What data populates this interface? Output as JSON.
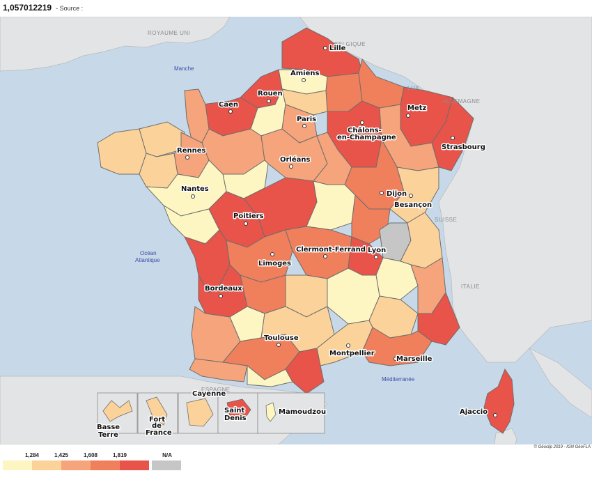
{
  "header": {
    "value_title": "1,057012219",
    "source_label": "- Source :"
  },
  "colors": {
    "sea": "#c7d9e8",
    "land_neighbor": "#e3e4e6",
    "na": "#c6c6c6",
    "class_1": "#fdf6c2",
    "class_2": "#fbd29a",
    "class_3": "#f5a47c",
    "class_4": "#f07f5c",
    "class_5": "#e8534a"
  },
  "legend": {
    "breaks": [
      "1,284",
      "1,425",
      "1,608",
      "1,819"
    ],
    "na_label": "N/A",
    "classes": [
      "class_1",
      "class_2",
      "class_3",
      "class_4",
      "class_5",
      "na"
    ]
  },
  "copyright": "© Géoclip 2019 - IGN GéoFLA",
  "countries": {
    "uk": "ROYAUME UNI",
    "belgium": "BELGIQUE",
    "lux": "LUX",
    "germany": "ALLEMAGNE",
    "switzerland": "SUISSE",
    "italy": "ITALIE",
    "spain": "ESPAGNE"
  },
  "seas": {
    "manche": "Manche",
    "atlantic_1": "Océan",
    "atlantic_2": "Atlantique",
    "mediterranean": "Méditerranée"
  },
  "cities": {
    "lille": "Lille",
    "amiens": "Amiens",
    "rouen": "Rouen",
    "caen": "Caen",
    "paris": "Paris",
    "metz": "Metz",
    "chalons_1": "Châlons-",
    "chalons_2": "en-Champagne",
    "strasbourg": "Strasbourg",
    "rennes": "Rennes",
    "orleans": "Orléans",
    "dijon": "Dijon",
    "besancon": "Besançon",
    "nantes": "Nantes",
    "poitiers": "Poitiers",
    "clermont": "Clermont-Ferrand",
    "lyon": "Lyon",
    "limoges": "Limoges",
    "bordeaux": "Bordeaux",
    "toulouse": "Toulouse",
    "montpellier": "Montpellier",
    "marseille": "Marseille",
    "ajaccio": "Ajaccio"
  },
  "overseas": {
    "basse_terre_1": "Basse",
    "basse_terre_2": "Terre",
    "fort_de_france_1": "Fort",
    "fort_de_france_2": "de",
    "fort_de_france_3": "France",
    "cayenne": "Cayenne",
    "saint_denis_1": "Saint",
    "saint_denis_2": "Denis",
    "mamoudzou": "Mamoudzou"
  }
}
